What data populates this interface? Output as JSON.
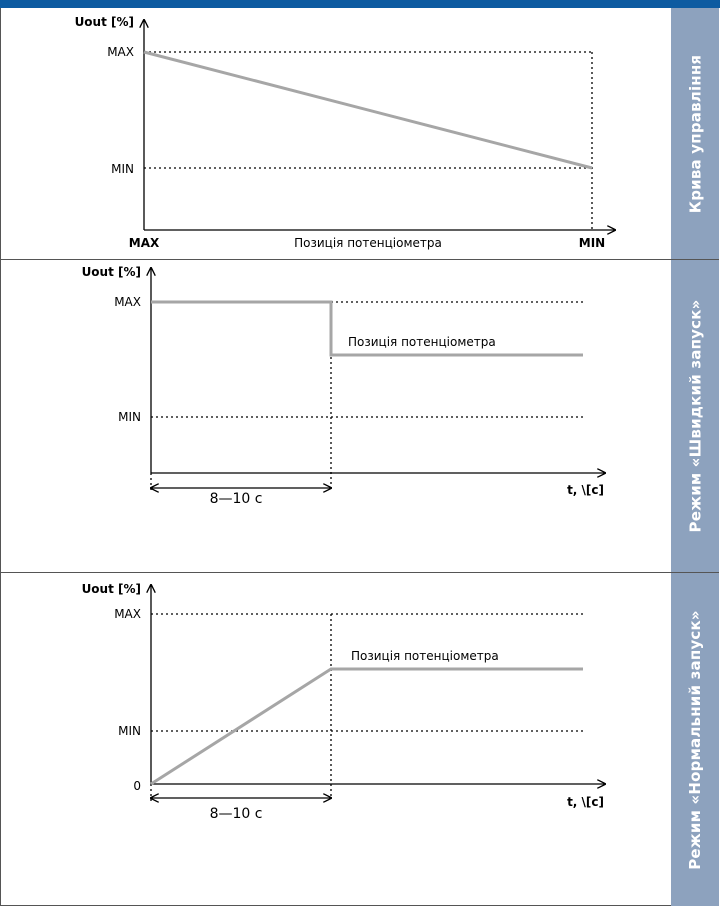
{
  "panels": [
    {
      "side_label": "Крива управління",
      "y_axis_label": "Uout [%]",
      "y_ticks": [
        "MAX",
        "MIN"
      ],
      "x_left_label": "MAX",
      "x_center_label": "Позиція потенціометра",
      "x_right_label": "MIN"
    },
    {
      "side_label": "Режим «Швидкий запуск»",
      "y_axis_label": "Uout [%]",
      "y_ticks": [
        "MAX",
        "MIN"
      ],
      "curve_label": "Позиція потенціометра",
      "x_axis_label": "t, \\[c]",
      "duration_label": "8—10 с"
    },
    {
      "side_label": "Режим «Нормальний запуск»",
      "y_axis_label": "Uout [%]",
      "y_ticks": [
        "MAX",
        "MIN",
        "0"
      ],
      "curve_label": "Позиція потенціометра",
      "x_axis_label": "t, \\[c]",
      "duration_label": "8—10 с"
    }
  ],
  "colors": {
    "header_bar": "#0d5ba1",
    "side_panel": "#8da2be",
    "curve": "#a6a6a6",
    "axis": "#000000"
  }
}
